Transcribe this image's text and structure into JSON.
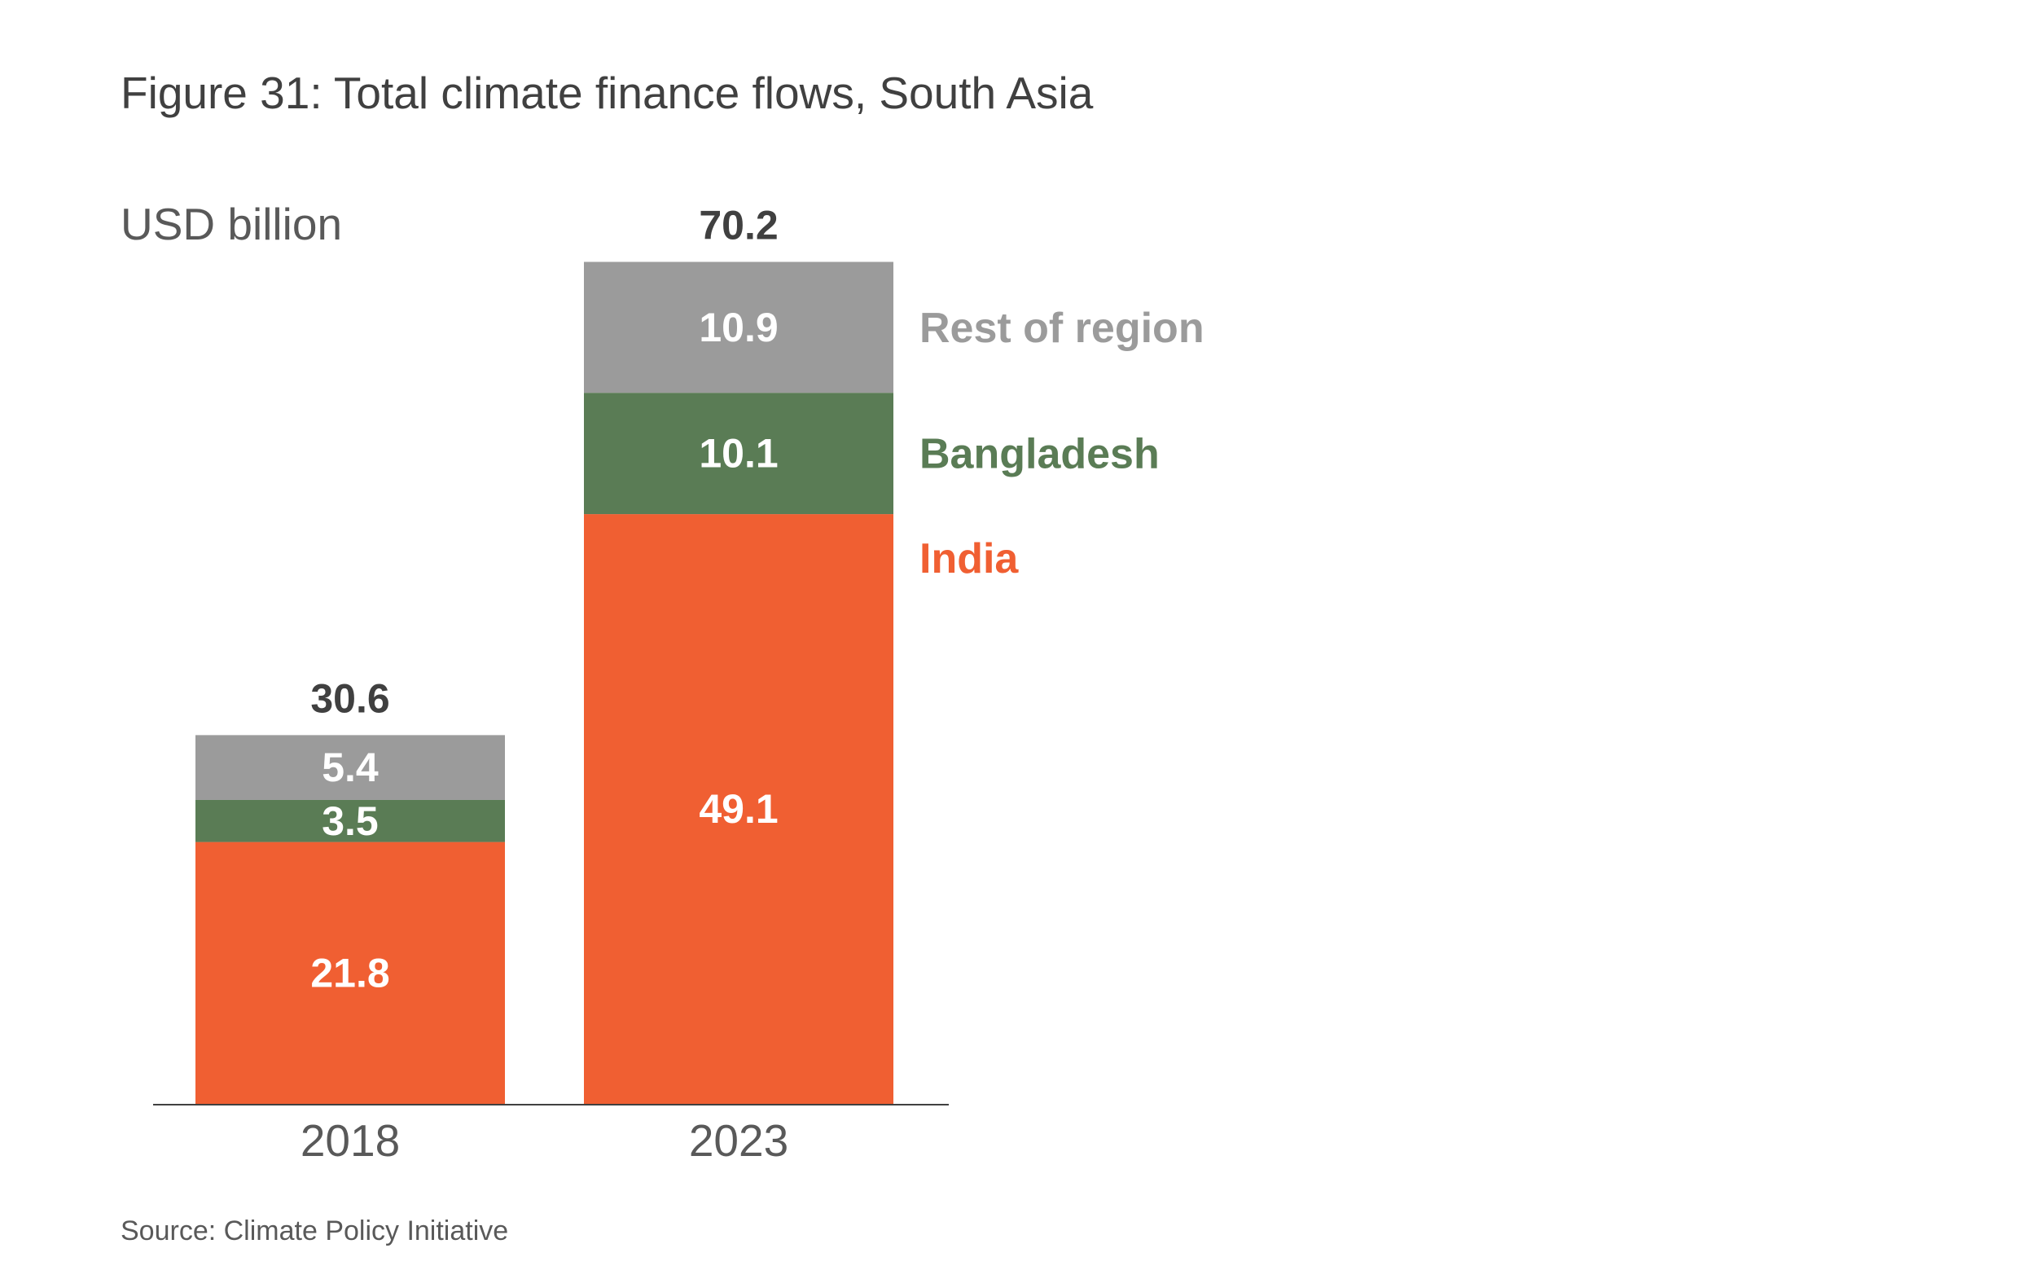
{
  "header": {
    "title": "Figure 31: Total climate finance flows, South Asia",
    "unit_label": "USD billion"
  },
  "footer": {
    "source": "Source: Climate Policy Initiative"
  },
  "colors": {
    "india": "#F05F32",
    "bangladesh": "#5A7C55",
    "rest_of_region": "#9B9B9B",
    "total_label": "#404040",
    "axis": "#404040",
    "tick_label": "#595959",
    "value_label": "#FFFFFF"
  },
  "chart_data": {
    "type": "bar",
    "stacked": true,
    "categories": [
      "2018",
      "2023"
    ],
    "series": [
      {
        "name": "India",
        "values": [
          21.8,
          49.1
        ],
        "color": "#F05F32"
      },
      {
        "name": "Bangladesh",
        "values": [
          3.5,
          10.1
        ],
        "color": "#5A7C55"
      },
      {
        "name": "Rest of region",
        "values": [
          5.4,
          10.9
        ],
        "color": "#9B9B9B"
      }
    ],
    "totals": [
      30.6,
      70.2
    ],
    "ylabel": "USD billion",
    "ylim": [
      0,
      70.2
    ],
    "grid": false,
    "legend": "right of last bar, aligned with segments"
  }
}
